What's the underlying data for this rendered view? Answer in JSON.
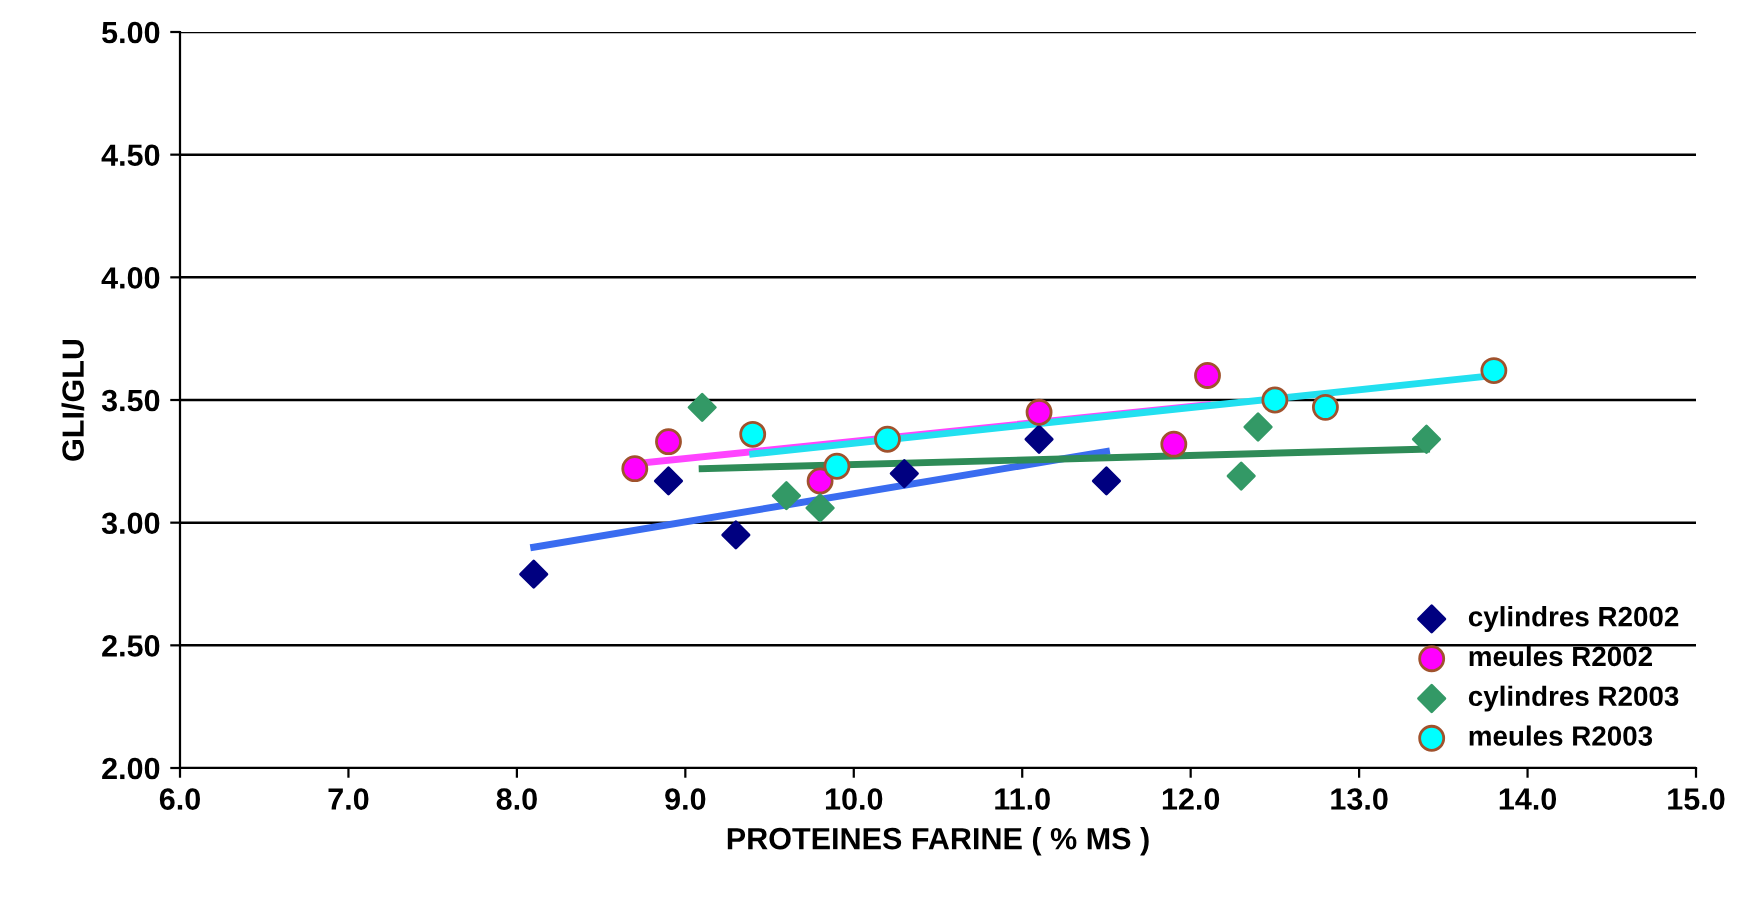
{
  "chart_data": {
    "type": "scatter",
    "xlabel": "PROTEINES FARINE ( % MS )",
    "ylabel": "GLI/GLU",
    "xlim": [
      6.0,
      15.0
    ],
    "xticks": [
      {
        "value": 6,
        "label": "6.0"
      },
      {
        "value": 7,
        "label": "7.0"
      },
      {
        "value": 8,
        "label": "8.0"
      },
      {
        "value": 9,
        "label": "9.0"
      },
      {
        "value": 10,
        "label": "10.0"
      },
      {
        "value": 11,
        "label": "11.0"
      },
      {
        "value": 12,
        "label": "12.0"
      },
      {
        "value": 13,
        "label": "13.0"
      },
      {
        "value": 14,
        "label": "14.0"
      },
      {
        "value": 15,
        "label": "15.0"
      }
    ],
    "ylim": [
      2.0,
      5.0
    ],
    "yticks": [
      {
        "value": 2,
        "label": "2.00"
      },
      {
        "value": 2.5,
        "label": "2.50"
      },
      {
        "value": 3,
        "label": "3.00"
      },
      {
        "value": 3.5,
        "label": "3.50"
      },
      {
        "value": 4,
        "label": "4.00"
      },
      {
        "value": 4.5,
        "label": "4.50"
      },
      {
        "value": 5,
        "label": "5.00"
      }
    ],
    "grid": "y",
    "legend": "bottom right",
    "series": [
      {
        "type": "line",
        "color": "#3a6cf0",
        "x": [
          8.1,
          11.5
        ],
        "values": [
          2.9,
          3.29
        ],
        "marker": "none"
      },
      {
        "type": "line",
        "color": "#ff44ff",
        "x": [
          8.7,
          12.1
        ],
        "values": [
          3.24,
          3.48
        ],
        "marker": "none"
      },
      {
        "type": "line",
        "color": "#2e8b57",
        "x": [
          9.1,
          13.4
        ],
        "values": [
          3.22,
          3.3
        ],
        "marker": "none"
      },
      {
        "type": "line",
        "color": "#22e0f0",
        "x": [
          9.4,
          13.8
        ],
        "values": [
          3.28,
          3.6
        ],
        "marker": "none"
      },
      {
        "name": "cylindres R2002",
        "color": "#000080",
        "marker": "diamond",
        "x": [
          8.1,
          8.9,
          9.3,
          10.3,
          11.1,
          11.5
        ],
        "values": [
          2.79,
          3.17,
          2.95,
          3.2,
          3.34,
          3.17
        ]
      },
      {
        "name": "meules R2002",
        "color": "#ff00ff",
        "marker": "circle",
        "x": [
          8.7,
          8.9,
          9.8,
          11.1,
          11.9,
          12.1
        ],
        "values": [
          3.22,
          3.33,
          3.17,
          3.45,
          3.32,
          3.6
        ]
      },
      {
        "name": "cylindres R2003",
        "color": "#339966",
        "marker": "diamond",
        "x": [
          9.1,
          9.6,
          9.8,
          12.3,
          12.4,
          13.4
        ],
        "values": [
          3.47,
          3.11,
          3.06,
          3.19,
          3.39,
          3.34
        ]
      },
      {
        "name": "meules R2003",
        "color": "#00ffff",
        "marker": "circle",
        "x": [
          9.4,
          9.9,
          10.2,
          12.5,
          12.8,
          13.8
        ],
        "values": [
          3.36,
          3.23,
          3.34,
          3.5,
          3.47,
          3.62
        ]
      }
    ]
  }
}
